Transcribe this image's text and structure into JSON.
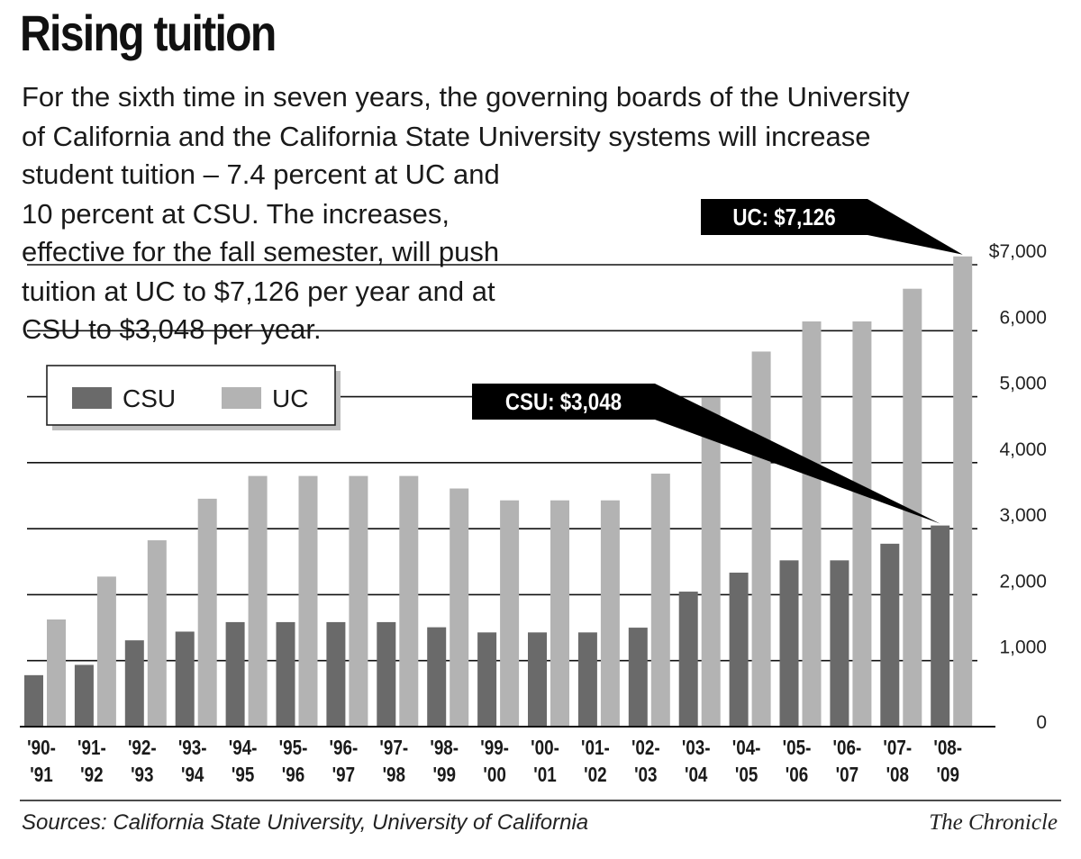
{
  "header": {
    "title": "Rising tuition",
    "intro_lines": [
      "For the sixth time in seven years, the governing boards of the University",
      "of California and the California State University systems will increase",
      "student tuition – 7.4 percent at UC and",
      "10 percent at CSU. The increases,",
      "effective for the fall semester, will push",
      "tuition at UC to $7,126 per year and at",
      "CSU to $3,048 per year."
    ]
  },
  "footer": {
    "sources": "Sources: California State University, University of California",
    "credit": "The Chronicle"
  },
  "chart_data": {
    "type": "bar",
    "title": "Rising tuition",
    "categories": [
      [
        "'90-",
        "'91"
      ],
      [
        "'91-",
        "'92"
      ],
      [
        "'92-",
        "'93"
      ],
      [
        "'93-",
        "'94"
      ],
      [
        "'94-",
        "'95"
      ],
      [
        "'95-",
        "'96"
      ],
      [
        "'96-",
        "'97"
      ],
      [
        "'97-",
        "'98"
      ],
      [
        "'98-",
        "'99"
      ],
      [
        "'99-",
        "'00"
      ],
      [
        "'00-",
        "'01"
      ],
      [
        "'01-",
        "'02"
      ],
      [
        "'02-",
        "'03"
      ],
      [
        "'03-",
        "'04"
      ],
      [
        "'04-",
        "'05"
      ],
      [
        "'05-",
        "'06"
      ],
      [
        "'06-",
        "'07"
      ],
      [
        "'07-",
        "'08"
      ],
      [
        "'08-",
        "'09"
      ]
    ],
    "series": [
      {
        "name": "CSU",
        "color": "#6a6a6a",
        "values": [
          780,
          936,
          1308,
          1440,
          1584,
          1584,
          1584,
          1584,
          1506,
          1428,
          1428,
          1428,
          1500,
          2046,
          2334,
          2520,
          2520,
          2772,
          3048
        ]
      },
      {
        "name": "UC",
        "color": "#b3b3b3",
        "values": [
          1624,
          2274,
          2824,
          3454,
          3799,
          3799,
          3799,
          3799,
          3609,
          3429,
          3429,
          3429,
          3834,
          4984,
          5684,
          6141,
          6141,
          6636,
          7126
        ]
      }
    ],
    "ylim": [
      0,
      7000
    ],
    "yticks": [
      {
        "value": 0,
        "label": "0"
      },
      {
        "value": 1000,
        "label": "1,000"
      },
      {
        "value": 2000,
        "label": "2,000"
      },
      {
        "value": 3000,
        "label": "3,000"
      },
      {
        "value": 4000,
        "label": "4,000"
      },
      {
        "value": 5000,
        "label": "5,000"
      },
      {
        "value": 6000,
        "label": "6,000"
      },
      {
        "value": 7000,
        "label": "$7,000"
      }
    ],
    "grid": true,
    "legend": {
      "position": "top-left",
      "entries": [
        "CSU",
        "UC"
      ]
    },
    "annotations": [
      {
        "label": "UC: $7,126",
        "series": "UC",
        "category_index": 18
      },
      {
        "label": "CSU: $3,048",
        "series": "CSU",
        "category_index": 18
      }
    ]
  }
}
